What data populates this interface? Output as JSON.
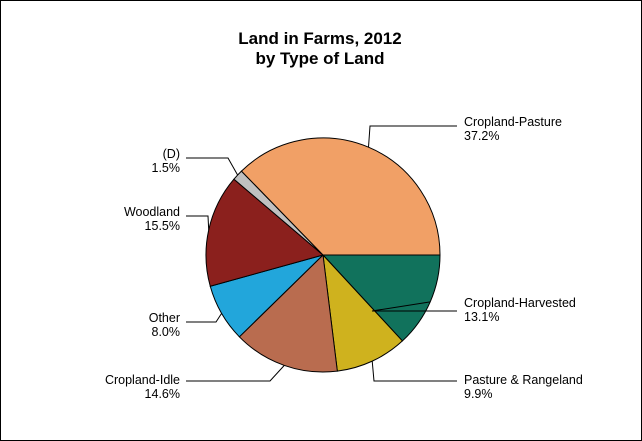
{
  "chart_data": {
    "type": "pie",
    "title": "Land in Farms, 2012",
    "subtitle": "by Type of Land",
    "start_angle_deg": 0,
    "direction": "clockwise",
    "slices": [
      {
        "name": "Cropland-Harvested",
        "value": 13.1,
        "label": "13.1%",
        "color": "#11725c"
      },
      {
        "name": "Pasture & Rangeland",
        "value": 9.9,
        "label": "9.9%",
        "color": "#cfb21e"
      },
      {
        "name": "Cropland-Idle",
        "value": 14.6,
        "label": "14.6%",
        "color": "#b96c4f"
      },
      {
        "name": "Other",
        "value": 8.0,
        "label": "8.0%",
        "color": "#22a6db"
      },
      {
        "name": "Woodland",
        "value": 15.5,
        "label": "15.5%",
        "color": "#8b201d"
      },
      {
        "name": "(D)",
        "value": 1.5,
        "label": "1.5%",
        "color": "#c0c0c0"
      },
      {
        "name": "Cropland-Pasture",
        "value": 37.2,
        "label": "37.2%",
        "color": "#f1a066"
      }
    ]
  }
}
